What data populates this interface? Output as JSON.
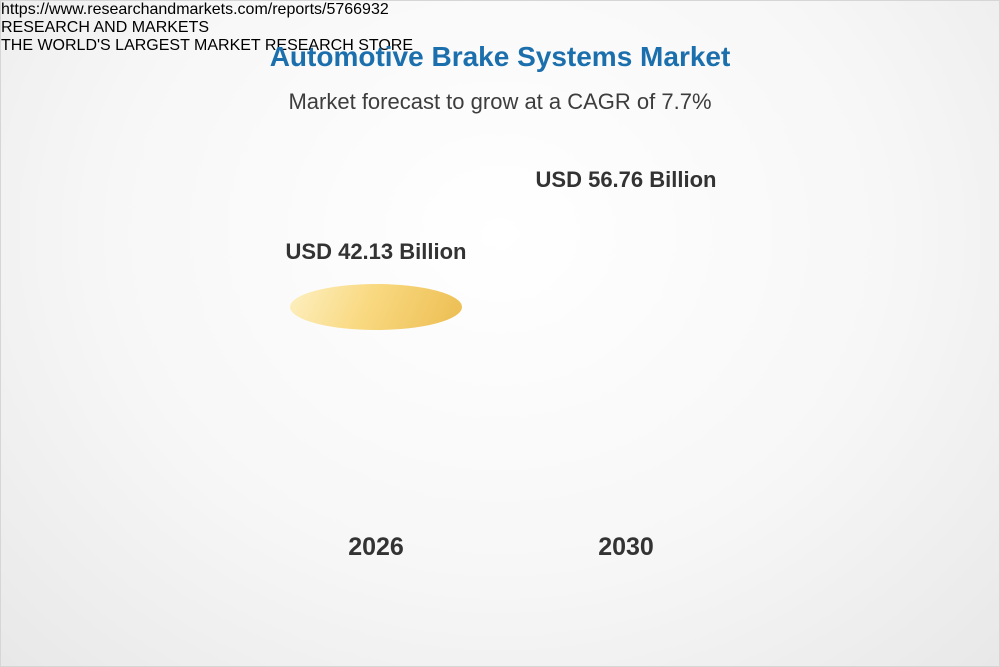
{
  "chart_data": {
    "type": "bar",
    "title": "Automotive Brake Systems Market",
    "subtitle": "Market forecast to grow at a CAGR of 7.7%",
    "cagr_percent": 7.7,
    "unit": "USD Billion",
    "categories": [
      "2026",
      "2030"
    ],
    "values": [
      42.13,
      56.76
    ],
    "bars": [
      {
        "year": "2026",
        "value": 42.13,
        "label": "USD 42.13 Billion"
      },
      {
        "year": "2030",
        "value": 56.76,
        "label": "USD 56.76 Billion"
      }
    ],
    "legend_position": "none",
    "grid": false,
    "colors": {
      "base_segment": "#f6c75f",
      "growth_segment": "#5d8fb8",
      "title_text": "#1c6fad",
      "label_text": "#333333"
    }
  },
  "footer": {
    "source_url": "https://www.researchandmarkets.com/reports/5766932",
    "logo": {
      "word1": "RESEARCH",
      "word2": "AND",
      "word3": "MARKETS",
      "tagline": "THE WORLD'S LARGEST MARKET RESEARCH STORE"
    }
  }
}
